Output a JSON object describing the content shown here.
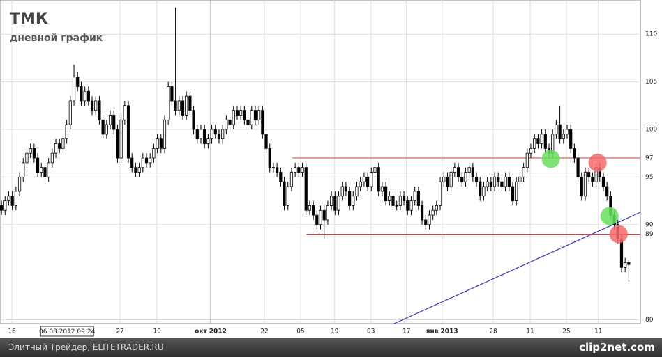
{
  "chart_data": {
    "type": "candlestick",
    "title": "ТМК",
    "subtitle": "дневной график",
    "open": [
      92,
      91.5,
      92.5,
      93,
      92,
      93.5,
      95,
      96.5,
      97.5,
      98,
      97,
      95.5,
      96,
      95,
      96.5,
      97.5,
      98.5,
      98,
      99,
      100.5,
      103,
      105.5,
      104.5,
      103,
      104,
      103,
      102,
      103,
      101,
      99.5,
      100.5,
      101.5,
      100,
      97,
      101,
      102.5,
      97,
      96,
      95.5,
      96,
      97,
      96.5,
      97,
      98,
      99,
      98,
      101,
      104.5,
      103,
      102,
      103,
      101.5,
      103.5,
      102,
      100,
      99,
      100,
      98.5,
      99,
      100,
      99.5,
      99,
      100,
      101,
      100.5,
      102,
      101.5,
      102,
      101,
      100.5,
      102,
      101,
      102,
      99.5,
      98,
      96,
      96,
      95.5,
      94.5,
      92,
      94,
      95.5,
      96,
      95.5,
      96,
      91.5,
      92,
      91,
      90,
      91.5,
      90.5,
      92,
      93,
      91.5,
      93,
      94,
      93.5,
      92,
      93,
      94,
      94.5,
      95,
      94,
      95.5,
      96,
      93.5,
      94,
      92.5,
      93,
      92,
      92,
      93,
      92.5,
      91.5,
      92.5,
      93.5,
      92,
      90.5,
      90,
      91,
      91.5,
      92,
      94.5,
      95,
      94,
      95.5,
      96,
      95,
      94.5,
      95.5,
      96,
      95,
      94.5,
      93,
      94,
      94.5,
      94,
      95,
      94.5,
      94,
      95,
      94,
      92.5,
      94.5,
      95,
      96,
      97.5,
      98,
      99,
      98.5,
      99.5,
      98,
      97.5,
      99.5,
      100.5,
      99,
      99.5,
      100,
      98,
      97,
      95,
      93,
      95.5,
      95,
      94.5,
      96,
      95,
      94,
      93,
      91,
      90,
      88.5,
      85.5,
      86
    ],
    "high": [
      92.5,
      93,
      93.5,
      93.5,
      94,
      95.5,
      97,
      98,
      98.5,
      98.5,
      97.5,
      96.5,
      96.5,
      97,
      98,
      99,
      99,
      99.5,
      101,
      103.5,
      106.8,
      106,
      105,
      104.5,
      104.5,
      103.5,
      103.5,
      103.5,
      101.5,
      101,
      102,
      102,
      100.5,
      101.5,
      103,
      103,
      97.5,
      96.5,
      96.5,
      97.5,
      97.5,
      97.5,
      98.5,
      99.5,
      99.5,
      101.5,
      105,
      105,
      112.8,
      103.5,
      103.5,
      104,
      104,
      102.5,
      100.5,
      100.5,
      100.5,
      99.5,
      100.5,
      100.5,
      100,
      100.5,
      101.5,
      101.5,
      102.5,
      102.5,
      102.5,
      102.5,
      101.5,
      102.5,
      102.5,
      102.5,
      102.5,
      100,
      98.5,
      96.5,
      96.5,
      96,
      95,
      94.5,
      96,
      96.5,
      96.5,
      96.5,
      96.5,
      92.5,
      92.5,
      91.5,
      92,
      92,
      92.5,
      93.5,
      93.5,
      93.5,
      94.5,
      94.5,
      94,
      93.5,
      94.5,
      95,
      95.5,
      95.5,
      96,
      96.5,
      96.5,
      94.5,
      94.5,
      93.5,
      93.5,
      92.5,
      93.5,
      93.5,
      93,
      93,
      94,
      94,
      92.5,
      91,
      91.5,
      92,
      92.5,
      95,
      95.5,
      95.5,
      96,
      96.5,
      96.5,
      95.5,
      96,
      96.5,
      96.5,
      95.5,
      95,
      94.5,
      95,
      95,
      95.5,
      95.5,
      95,
      95.5,
      95.5,
      94.5,
      95,
      95.5,
      96.5,
      98,
      98.5,
      99.5,
      99.5,
      100,
      100,
      98.5,
      100,
      101,
      102.5,
      100,
      100.5,
      100.5,
      98.5,
      97.5,
      95.5,
      96,
      96,
      95.5,
      96.5,
      96.5,
      95.5,
      94.5,
      93.5,
      91.5,
      90.5,
      89,
      86.5,
      86.3
    ],
    "low": [
      91,
      91,
      92,
      91.5,
      91.5,
      93,
      94.5,
      96,
      97,
      96.5,
      95,
      95,
      94.5,
      94.5,
      96,
      97,
      97.5,
      97.5,
      98.5,
      100,
      102.5,
      104,
      102.5,
      102.5,
      102.5,
      101.5,
      101.5,
      100.5,
      99,
      99,
      100,
      99.5,
      96.5,
      96.5,
      100.5,
      96.5,
      95.5,
      95,
      95,
      95.5,
      96,
      96,
      96.5,
      97.5,
      97.5,
      97.5,
      100.5,
      102.5,
      101.5,
      101.5,
      101,
      101,
      101.5,
      99.5,
      98.5,
      98.5,
      98,
      98,
      98.5,
      99,
      98.5,
      98.5,
      99.5,
      100,
      100,
      101,
      101,
      100.5,
      100,
      100,
      100.5,
      100.5,
      99,
      97.5,
      95.5,
      95.5,
      95,
      94,
      91.5,
      91.5,
      93.5,
      95,
      95,
      95,
      91,
      91,
      90.5,
      89.5,
      89.5,
      88.5,
      90,
      91.5,
      91,
      91,
      92.5,
      93,
      91.5,
      91.5,
      92.5,
      93.5,
      94,
      93.5,
      93.5,
      95,
      93,
      93,
      92,
      92,
      91.5,
      91.5,
      91.5,
      92,
      91,
      91,
      92,
      91.5,
      90,
      89.5,
      89.5,
      90.5,
      91,
      91.5,
      94,
      93.5,
      93.5,
      95,
      94.5,
      94,
      94,
      95,
      94.5,
      94,
      92.5,
      92.5,
      93.5,
      93.5,
      93.5,
      94,
      93.5,
      93.5,
      93.5,
      92,
      92,
      94,
      94.5,
      95.5,
      97,
      97.5,
      98,
      98,
      97.5,
      97,
      97,
      99,
      98.5,
      98.5,
      99,
      97.5,
      96.5,
      94.5,
      92.5,
      92.5,
      94.5,
      94,
      94,
      94.5,
      93.5,
      92.5,
      90.5,
      89.5,
      88,
      85,
      85,
      84
    ],
    "close": [
      91.5,
      92.5,
      93,
      92,
      93.5,
      95,
      96.5,
      97.5,
      98,
      97,
      95.5,
      96,
      95,
      96.5,
      97.5,
      98.5,
      98,
      99,
      100.5,
      103,
      105.5,
      104.5,
      103,
      104,
      103,
      102,
      103,
      101,
      99.5,
      100.5,
      101.5,
      100,
      97,
      101,
      102.5,
      97,
      96,
      95.5,
      96,
      97,
      96.5,
      97,
      98,
      99,
      98,
      101,
      104.5,
      103,
      102,
      103,
      101.5,
      103.5,
      102,
      100,
      99,
      100,
      98.5,
      99,
      100,
      99.5,
      99,
      100,
      101,
      100.5,
      102,
      101.5,
      102,
      101,
      100.5,
      102,
      101,
      102,
      99.5,
      98,
      96,
      96,
      95.5,
      94.5,
      92,
      94,
      95.5,
      96,
      95.5,
      96,
      91.5,
      92,
      91,
      90,
      91.5,
      90.5,
      92,
      93,
      91.5,
      93,
      94,
      93.5,
      92,
      93,
      94,
      94.5,
      95,
      94,
      95.5,
      96,
      93.5,
      94,
      92.5,
      93,
      92,
      92,
      93,
      92.5,
      91.5,
      92.5,
      93.5,
      92,
      90.5,
      90,
      91,
      91.5,
      92,
      94.5,
      95,
      94,
      95.5,
      96,
      95,
      94.5,
      95.5,
      96,
      95,
      94.5,
      93,
      94,
      94.5,
      94,
      95,
      94.5,
      94,
      95,
      94,
      92.5,
      94.5,
      95,
      96,
      97.5,
      98,
      99,
      98.5,
      99.5,
      98,
      97.5,
      99.5,
      100.5,
      99,
      99.5,
      100,
      98,
      97,
      95,
      93,
      95.5,
      95,
      94.5,
      96,
      95,
      94,
      93,
      91,
      90,
      88.5,
      85.5,
      86,
      85.8
    ],
    "xlim": [
      -0.4,
      176.2
    ],
    "ylim": [
      79.6,
      113.6
    ],
    "xticks": [
      {
        "value": 2.9,
        "label": "16"
      },
      {
        "value": 32.7,
        "label": "27"
      },
      {
        "value": 42.9,
        "label": "10"
      },
      {
        "value": 57.7,
        "label": "окт 2012"
      },
      {
        "value": 72.5,
        "label": "22"
      },
      {
        "value": 82.5,
        "label": "05"
      },
      {
        "value": 91.9,
        "label": "19"
      },
      {
        "value": 101.9,
        "label": "03"
      },
      {
        "value": 111.7,
        "label": "17"
      },
      {
        "value": 121.5,
        "label": "янв 2013"
      },
      {
        "value": 135.6,
        "label": "28"
      },
      {
        "value": 145.8,
        "label": "11"
      },
      {
        "value": 155.8,
        "label": "25"
      },
      {
        "value": 164.6,
        "label": "11"
      }
    ],
    "yticks": [
      80,
      90,
      95,
      100,
      105,
      110
    ],
    "cursor_label": {
      "value": 18.1,
      "label": "06.08.2012 09:24"
    },
    "levels": [
      {
        "value": 97,
        "start": 80.2,
        "color": "#ff2a2a"
      },
      {
        "value": 89,
        "start": 84.1,
        "color": "#ff2a2a"
      }
    ],
    "trendline": {
      "x": [
        108.3,
        176.2
      ],
      "y": [
        79.6,
        91.3
      ],
      "color": "#3333ee"
    },
    "markers": [
      {
        "x": 151.5,
        "y": 96.9,
        "color": "#66e05a"
      },
      {
        "x": 164.4,
        "y": 96.5,
        "color": "#f46a6a"
      },
      {
        "x": 167.7,
        "y": 90.9,
        "color": "#66e05a"
      },
      {
        "x": 170.2,
        "y": 89,
        "color": "#f46a6a"
      }
    ],
    "grid": true,
    "footer": {
      "source": "Элитный Трейдер, ELITETRADER.RU",
      "logo": "clip2net.com"
    }
  }
}
